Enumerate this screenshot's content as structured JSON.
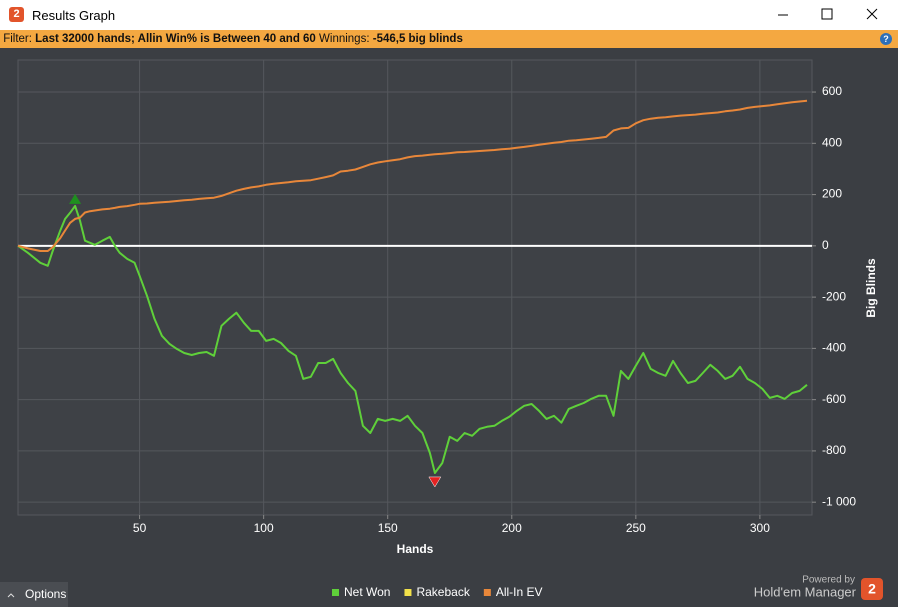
{
  "window": {
    "title": "Results Graph"
  },
  "filter": {
    "label": "Filter:",
    "criteria": "Last 32000 hands; Allin Win% is Between 40 and 60",
    "winnings_label": "Winnings:",
    "winnings": "-546,5 big blinds"
  },
  "options_button": "Options",
  "branding": {
    "powered_by": "Powered by",
    "product": "Hold'em Manager",
    "logo": "2"
  },
  "chart_data": {
    "type": "line",
    "x_label": "Hands",
    "y_label": "Big Blinds",
    "xlim": [
      1,
      321
    ],
    "xticks": [
      50,
      100,
      150,
      200,
      250,
      300
    ],
    "ylim": [
      -1050,
      725
    ],
    "yticks": [
      {
        "value": -1000,
        "label": "-1 000"
      },
      -800,
      -600,
      -400,
      -200,
      0,
      200,
      400,
      600
    ],
    "grid": true,
    "legend": "bottom",
    "x": [
      1,
      5,
      10,
      13,
      15,
      18,
      20,
      22,
      24,
      26,
      28,
      30,
      32,
      35,
      38,
      40,
      42,
      45,
      48,
      50,
      53,
      56,
      59,
      62,
      65,
      68,
      71,
      74,
      77,
      80,
      83,
      86,
      89,
      92,
      95,
      98,
      101,
      104,
      107,
      110,
      113,
      116,
      119,
      122,
      125,
      128,
      131,
      134,
      137,
      140,
      143,
      146,
      149,
      152,
      155,
      158,
      161,
      164,
      167,
      169,
      172,
      175,
      178,
      181,
      184,
      187,
      190,
      193,
      196,
      199,
      202,
      205,
      208,
      211,
      214,
      217,
      220,
      223,
      226,
      229,
      232,
      235,
      238,
      241,
      244,
      247,
      250,
      253,
      256,
      259,
      262,
      265,
      268,
      271,
      274,
      277,
      280,
      283,
      286,
      289,
      292,
      295,
      298,
      301,
      304,
      307,
      310,
      313,
      316,
      319
    ],
    "series": [
      {
        "name": "Net Won",
        "color": "#5fd03a",
        "values": [
          0,
          -27,
          -66,
          -78,
          -20,
          59,
          105,
          129,
          156,
          98,
          20,
          12,
          4,
          20,
          35,
          0,
          -27,
          -51,
          -66,
          -117,
          -195,
          -285,
          -351,
          -382,
          -402,
          -418,
          -426,
          -418,
          -414,
          -429,
          -312,
          -285,
          -261,
          -300,
          -332,
          -332,
          -371,
          -363,
          -379,
          -410,
          -429,
          -519,
          -511,
          -457,
          -457,
          -441,
          -496,
          -535,
          -566,
          -702,
          -730,
          -675,
          -683,
          -675,
          -683,
          -663,
          -702,
          -730,
          -808,
          -886,
          -847,
          -745,
          -761,
          -730,
          -741,
          -714,
          -706,
          -702,
          -683,
          -667,
          -644,
          -624,
          -617,
          -644,
          -675,
          -663,
          -690,
          -636,
          -624,
          -613,
          -597,
          -585,
          -585,
          -663,
          -488,
          -519,
          -468,
          -418,
          -480,
          -496,
          -507,
          -449,
          -496,
          -535,
          -527,
          -496,
          -464,
          -488,
          -519,
          -507,
          -472,
          -519,
          -535,
          -558,
          -593,
          -585,
          -597,
          -574,
          -566,
          -542
        ]
      },
      {
        "name": "Rakeback",
        "color": "#f2e14a"
      },
      {
        "name": "All-In EV",
        "color": "#e8873a",
        "values": [
          0,
          -10,
          -20,
          -20,
          -5,
          30,
          60,
          90,
          105,
          110,
          130,
          135,
          138,
          142,
          145,
          148,
          152,
          155,
          160,
          164,
          165,
          168,
          170,
          172,
          175,
          178,
          180,
          183,
          186,
          188,
          195,
          205,
          215,
          222,
          228,
          232,
          238,
          242,
          245,
          248,
          252,
          254,
          256,
          262,
          268,
          275,
          290,
          293,
          298,
          308,
          318,
          325,
          330,
          334,
          338,
          345,
          350,
          352,
          355,
          357,
          359,
          362,
          365,
          366,
          368,
          370,
          372,
          374,
          377,
          379,
          383,
          386,
          390,
          394,
          398,
          402,
          405,
          410,
          412,
          415,
          418,
          421,
          425,
          450,
          458,
          460,
          478,
          490,
          496,
          500,
          502,
          505,
          508,
          510,
          512,
          515,
          518,
          520,
          525,
          528,
          532,
          538,
          542,
          545,
          548,
          552,
          556,
          560,
          563,
          566
        ]
      }
    ]
  }
}
